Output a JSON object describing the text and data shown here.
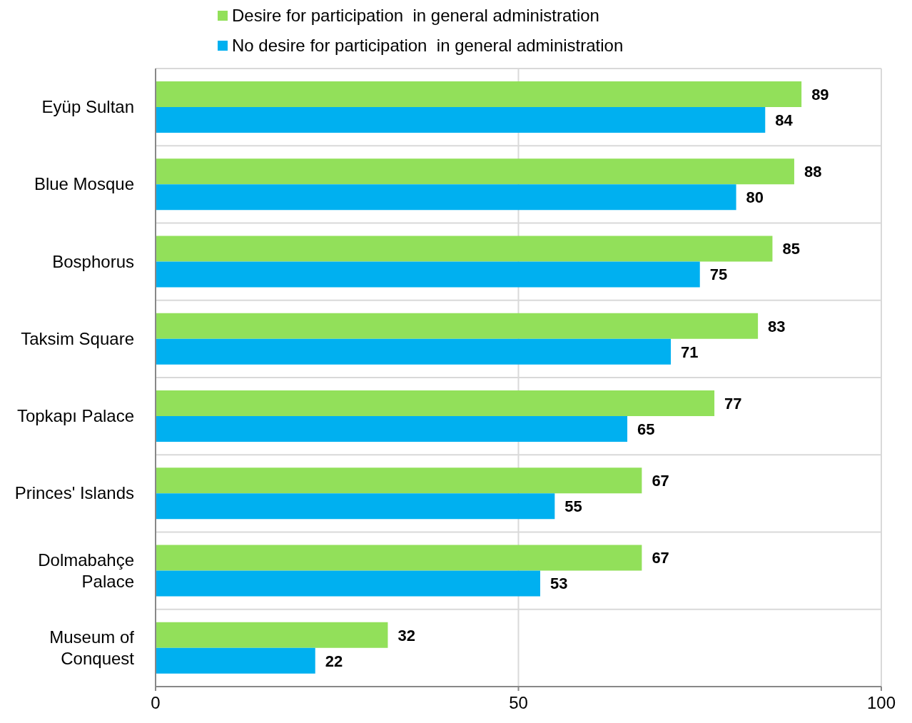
{
  "chart_data": {
    "type": "bar",
    "orientation": "horizontal",
    "categories": [
      "Eyüp Sultan",
      "Blue Mosque",
      "Bosphorus",
      "Taksim Square",
      "Topkapı Palace",
      "Princes' Islands",
      "Dolmabahçe Palace",
      "Museum of Conquest"
    ],
    "series": [
      {
        "name": "Desire for participation  in general administration",
        "color": "#92e05a",
        "values": [
          89,
          88,
          85,
          83,
          77,
          67,
          67,
          32
        ]
      },
      {
        "name": "No desire for participation  in general administration",
        "color": "#00b0f0",
        "values": [
          84,
          80,
          75,
          71,
          65,
          55,
          53,
          22
        ]
      }
    ],
    "xlim": [
      0,
      100
    ],
    "xticks": [
      0,
      50,
      100
    ],
    "data_labels": true,
    "grid": true,
    "legend": "top"
  }
}
